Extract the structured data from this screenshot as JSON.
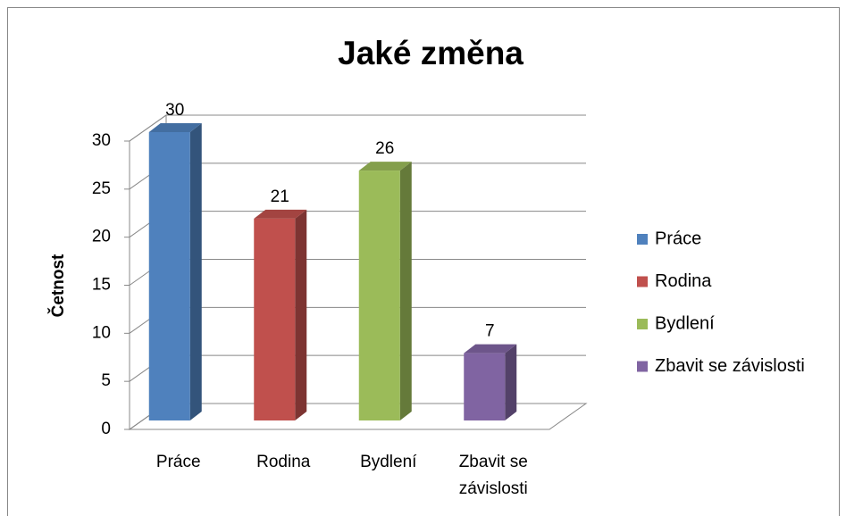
{
  "chart_data": {
    "type": "bar",
    "title": "Jaké změna",
    "y_label": "Četnost",
    "categories": [
      "Práce",
      "Rodina",
      "Bydlení",
      "Zbavit se závislosti"
    ],
    "values": [
      30,
      21,
      26,
      7
    ],
    "colors": [
      "#4f81bd",
      "#c0504d",
      "#9bbb59",
      "#8064a2"
    ],
    "ylim": [
      0,
      30
    ],
    "yticks": [
      0,
      5,
      10,
      15,
      20,
      25,
      30
    ],
    "grid": true,
    "legend": "right",
    "data_labels": true
  }
}
